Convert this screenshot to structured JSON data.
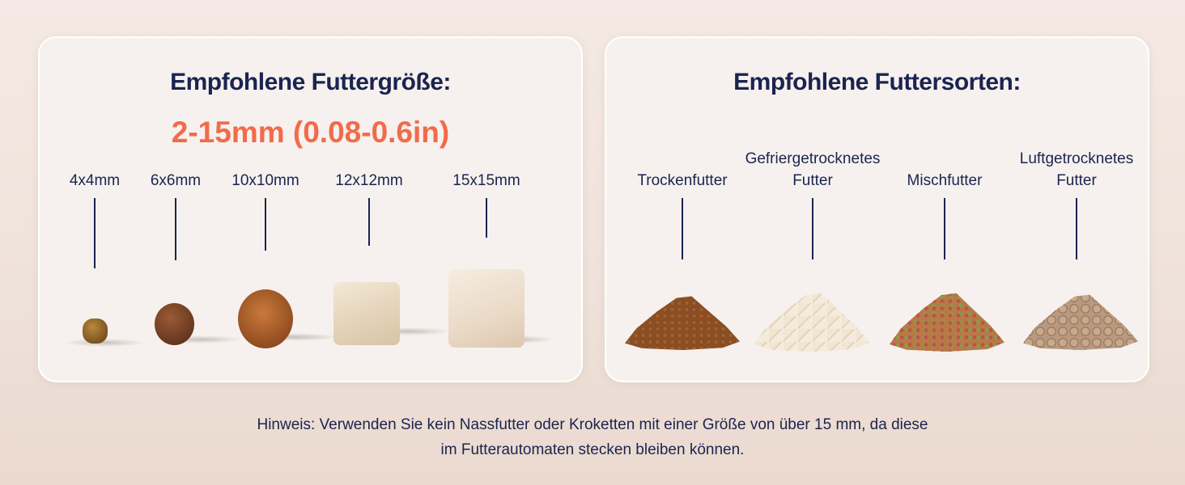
{
  "size_card": {
    "title": "Empfohlene Futtergröße:",
    "range": "2-15mm (0.08-0.6in)",
    "sizes": [
      {
        "label": "4x4mm",
        "shape": "kibble"
      },
      {
        "label": "6x6mm",
        "shape": "kibble"
      },
      {
        "label": "10x10mm",
        "shape": "kibble"
      },
      {
        "label": "12x12mm",
        "shape": "cube"
      },
      {
        "label": "15x15mm",
        "shape": "cube"
      }
    ]
  },
  "types_card": {
    "title": "Empfohlene Futtersorten:",
    "types": [
      {
        "label_line1": "",
        "label_line2": "Trockenfutter"
      },
      {
        "label_line1": "Gefriergetrocknetes",
        "label_line2": "Futter"
      },
      {
        "label_line1": "",
        "label_line2": "Mischfutter"
      },
      {
        "label_line1": "Luftgetrocknetes",
        "label_line2": "Futter"
      }
    ]
  },
  "note": {
    "line1": "Hinweis: Verwenden Sie kein Nassfutter oder Kroketten mit einer Größe von über 15 mm, da diese",
    "line2": "im Futterautomaten stecken bleiben können."
  },
  "colors": {
    "navy": "#1b2450",
    "accent": "#f26b4a",
    "card": "#f6f1ee"
  }
}
